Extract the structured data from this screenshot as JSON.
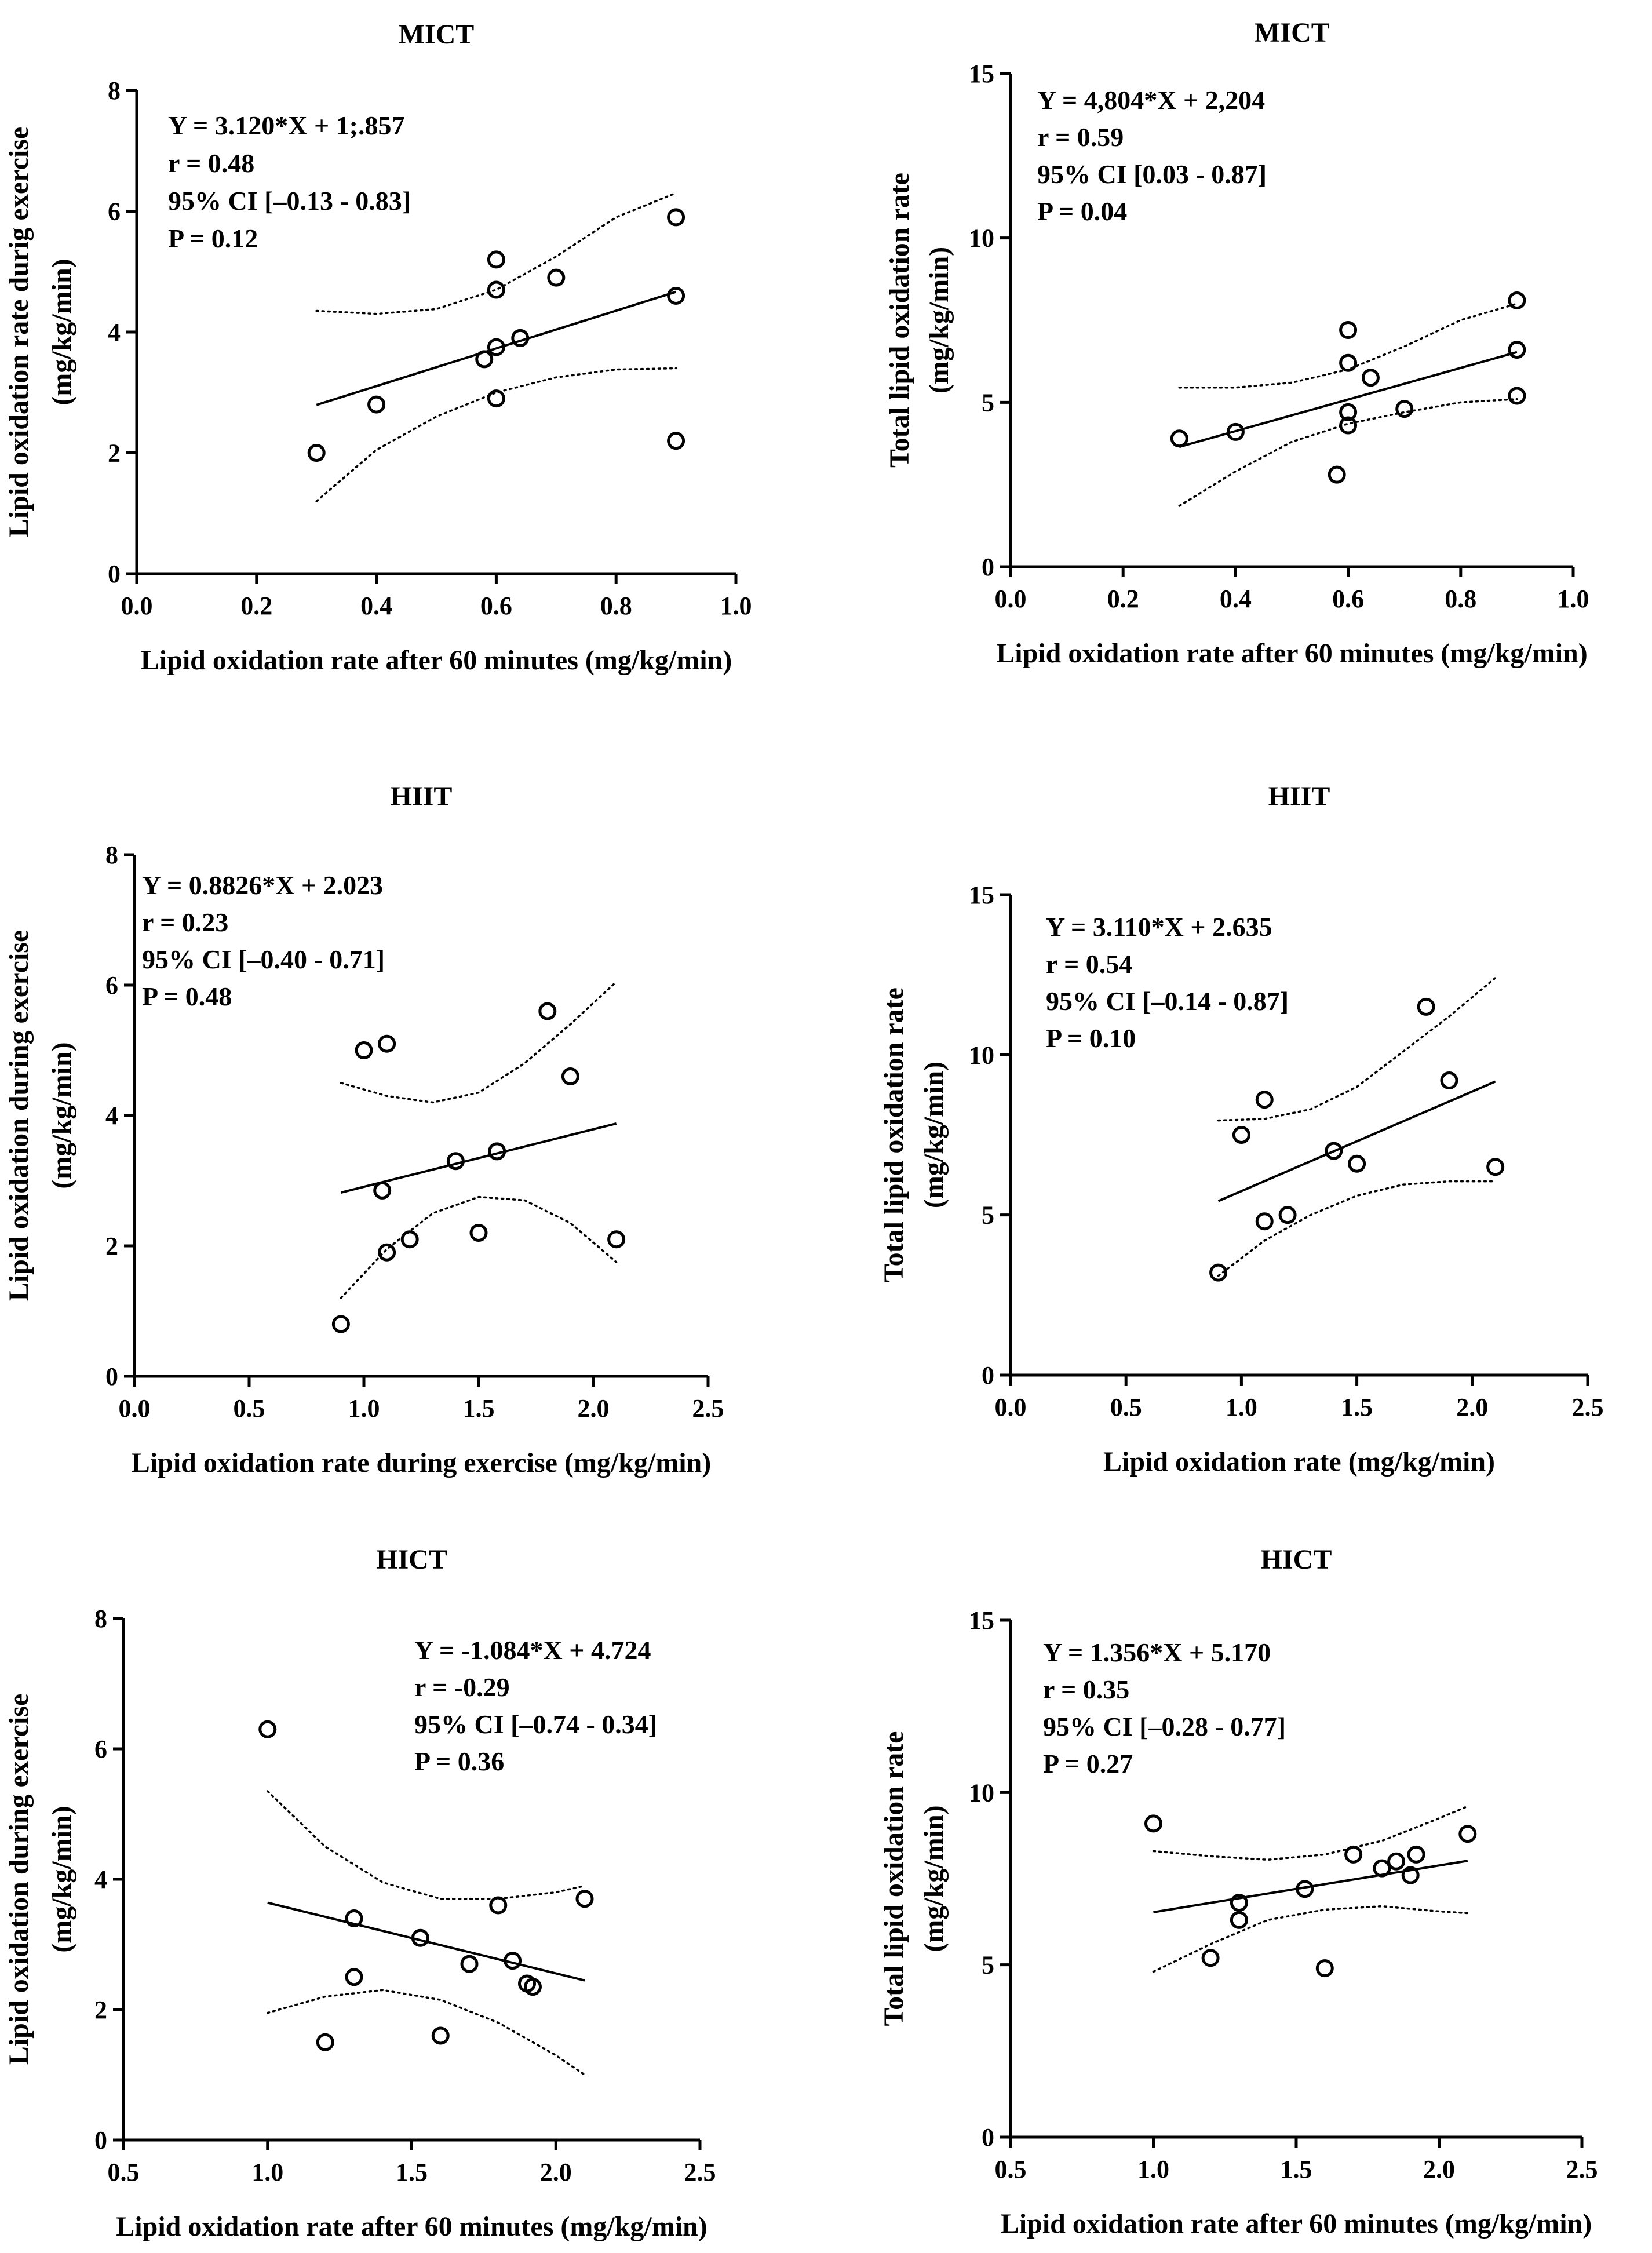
{
  "chart_data": [
    {
      "type": "scatter",
      "title": "MICT",
      "xlabel": "Lipid oxidation rate after 60 minutes (mg/kg/min)",
      "ylabel": [
        "Lipid oxidation rate durig exercise",
        "(mg/kg/min)"
      ],
      "xlim": [
        0.0,
        1.0
      ],
      "ylim": [
        0,
        8
      ],
      "xticks": [
        "0.0",
        "0.2",
        "0.4",
        "0.6",
        "0.8",
        "1.0"
      ],
      "yticks": [
        "0",
        "2",
        "4",
        "6",
        "8"
      ],
      "points": [
        [
          0.3,
          2.0
        ],
        [
          0.4,
          2.8
        ],
        [
          0.58,
          3.55
        ],
        [
          0.6,
          3.75
        ],
        [
          0.6,
          4.7
        ],
        [
          0.6,
          5.2
        ],
        [
          0.6,
          2.9
        ],
        [
          0.64,
          3.9
        ],
        [
          0.7,
          4.9
        ],
        [
          0.9,
          5.9
        ],
        [
          0.9,
          4.6
        ],
        [
          0.9,
          2.2
        ]
      ],
      "fit": {
        "slope": 3.12,
        "intercept": 1.857,
        "x_range": [
          0.3,
          0.9
        ]
      },
      "ci_upper": [
        [
          0.3,
          4.35
        ],
        [
          0.4,
          4.3
        ],
        [
          0.5,
          4.38
        ],
        [
          0.6,
          4.7
        ],
        [
          0.7,
          5.25
        ],
        [
          0.8,
          5.9
        ],
        [
          0.9,
          6.3
        ]
      ],
      "ci_lower": [
        [
          0.3,
          1.2
        ],
        [
          0.4,
          2.05
        ],
        [
          0.5,
          2.6
        ],
        [
          0.6,
          3.0
        ],
        [
          0.7,
          3.25
        ],
        [
          0.8,
          3.38
        ],
        [
          0.9,
          3.4
        ]
      ],
      "stats": [
        "Y = 3.120*X + 1;.857",
        "r = 0.48",
        "95% CI [–0.13 - 0.83]",
        "P = 0.12"
      ]
    },
    {
      "type": "scatter",
      "title": "MICT",
      "xlabel": "Lipid oxidation rate after 60 minutes (mg/kg/min)",
      "ylabel": [
        "Total lipid oxidation rate",
        "(mg/kg/min)"
      ],
      "xlim": [
        0.0,
        1.0
      ],
      "ylim": [
        0,
        15
      ],
      "xticks": [
        "0.0",
        "0.2",
        "0.4",
        "0.6",
        "0.8",
        "1.0"
      ],
      "yticks": [
        "0",
        "5",
        "10",
        "15"
      ],
      "points": [
        [
          0.3,
          3.9
        ],
        [
          0.4,
          4.1
        ],
        [
          0.58,
          2.8
        ],
        [
          0.6,
          7.2
        ],
        [
          0.6,
          6.2
        ],
        [
          0.6,
          4.7
        ],
        [
          0.6,
          4.3
        ],
        [
          0.64,
          5.75
        ],
        [
          0.7,
          4.8
        ],
        [
          0.9,
          8.1
        ],
        [
          0.9,
          6.6
        ],
        [
          0.9,
          5.2
        ]
      ],
      "fit": {
        "slope": 4.804,
        "intercept": 2.204,
        "x_range": [
          0.3,
          0.9
        ]
      },
      "ci_upper": [
        [
          0.3,
          5.45
        ],
        [
          0.4,
          5.45
        ],
        [
          0.5,
          5.6
        ],
        [
          0.6,
          6.0
        ],
        [
          0.7,
          6.7
        ],
        [
          0.8,
          7.5
        ],
        [
          0.9,
          8.0
        ]
      ],
      "ci_lower": [
        [
          0.3,
          1.85
        ],
        [
          0.4,
          2.9
        ],
        [
          0.5,
          3.8
        ],
        [
          0.6,
          4.35
        ],
        [
          0.7,
          4.7
        ],
        [
          0.8,
          5.0
        ],
        [
          0.9,
          5.1
        ]
      ],
      "stats": [
        "Y = 4,804*X + 2,204",
        "r = 0.59",
        "95% CI [0.03 - 0.87]",
        "P = 0.04"
      ]
    },
    {
      "type": "scatter",
      "title": "HIIT",
      "xlabel": "Lipid oxidation rate during exercise (mg/kg/min)",
      "ylabel": [
        "Lipid oxidation during exercise",
        "(mg/kg/min)"
      ],
      "xlim": [
        0.0,
        2.5
      ],
      "ylim": [
        0,
        8
      ],
      "xticks": [
        "0.0",
        "0.5",
        "1.0",
        "1.5",
        "2.0",
        "2.5"
      ],
      "yticks": [
        "0",
        "2",
        "4",
        "6",
        "8"
      ],
      "points": [
        [
          0.9,
          0.8
        ],
        [
          1.0,
          5.0
        ],
        [
          1.08,
          2.85
        ],
        [
          1.1,
          5.1
        ],
        [
          1.1,
          1.9
        ],
        [
          1.2,
          2.1
        ],
        [
          1.4,
          3.3
        ],
        [
          1.5,
          2.2
        ],
        [
          1.58,
          3.45
        ],
        [
          1.8,
          5.6
        ],
        [
          1.9,
          4.6
        ],
        [
          2.1,
          2.1
        ]
      ],
      "fit": {
        "slope": 0.8826,
        "intercept": 2.023,
        "x_range": [
          0.9,
          2.1
        ]
      },
      "ci_upper": [
        [
          0.9,
          4.5
        ],
        [
          1.1,
          4.3
        ],
        [
          1.3,
          4.2
        ],
        [
          1.5,
          4.35
        ],
        [
          1.7,
          4.8
        ],
        [
          1.9,
          5.4
        ],
        [
          2.1,
          6.05
        ]
      ],
      "ci_lower": [
        [
          0.9,
          1.2
        ],
        [
          1.1,
          1.95
        ],
        [
          1.3,
          2.5
        ],
        [
          1.5,
          2.75
        ],
        [
          1.7,
          2.7
        ],
        [
          1.9,
          2.35
        ],
        [
          2.1,
          1.75
        ]
      ],
      "stats": [
        "Y = 0.8826*X + 2.023",
        "r = 0.23",
        "95% CI [–0.40 - 0.71]",
        "P = 0.48"
      ]
    },
    {
      "type": "scatter",
      "title": "HIIT",
      "xlabel": "Lipid oxidation rate (mg/kg/min)",
      "ylabel": [
        "Total lipid oxidation rate",
        "(mg/kg/min)"
      ],
      "xlim": [
        0.0,
        2.5
      ],
      "ylim": [
        0,
        15
      ],
      "xticks": [
        "0.0",
        "0.5",
        "1.0",
        "1.5",
        "2.0",
        "2.5"
      ],
      "yticks": [
        "0",
        "5",
        "10",
        "15"
      ],
      "points": [
        [
          0.9,
          3.2
        ],
        [
          1.0,
          7.5
        ],
        [
          1.1,
          8.6
        ],
        [
          1.1,
          4.8
        ],
        [
          1.2,
          5.0
        ],
        [
          1.4,
          7.0
        ],
        [
          1.5,
          6.6
        ],
        [
          1.8,
          11.5
        ],
        [
          1.9,
          9.2
        ],
        [
          2.1,
          6.5
        ]
      ],
      "fit": {
        "slope": 3.11,
        "intercept": 2.635,
        "x_range": [
          0.9,
          2.1
        ]
      },
      "ci_upper": [
        [
          0.9,
          7.95
        ],
        [
          1.1,
          8.0
        ],
        [
          1.3,
          8.3
        ],
        [
          1.5,
          9.0
        ],
        [
          1.7,
          10.1
        ],
        [
          1.9,
          11.2
        ],
        [
          2.1,
          12.4
        ]
      ],
      "ci_lower": [
        [
          0.9,
          3.1
        ],
        [
          1.1,
          4.2
        ],
        [
          1.3,
          5.0
        ],
        [
          1.5,
          5.6
        ],
        [
          1.7,
          5.95
        ],
        [
          1.9,
          6.05
        ],
        [
          2.1,
          6.05
        ]
      ],
      "stats": [
        "Y = 3.110*X + 2.635",
        "r = 0.54",
        "95% CI [–0.14 - 0.87]",
        "P = 0.10"
      ]
    },
    {
      "type": "scatter",
      "title": "HICT",
      "xlabel": "Lipid oxidation rate after 60 minutes (mg/kg/min)",
      "ylabel": [
        "Lipid oxidation during exercise",
        "(mg/kg/min)"
      ],
      "xlim": [
        0.5,
        2.5
      ],
      "ylim": [
        0,
        8
      ],
      "xticks": [
        "0.5",
        "1.0",
        "1.5",
        "2.0",
        "2.5"
      ],
      "yticks": [
        "0",
        "2",
        "4",
        "6",
        "8"
      ],
      "points": [
        [
          1.0,
          6.3
        ],
        [
          1.2,
          1.5
        ],
        [
          1.3,
          3.4
        ],
        [
          1.3,
          2.5
        ],
        [
          1.53,
          3.1
        ],
        [
          1.6,
          1.6
        ],
        [
          1.7,
          2.7
        ],
        [
          1.8,
          3.6
        ],
        [
          1.85,
          2.75
        ],
        [
          1.9,
          2.4
        ],
        [
          1.92,
          2.35
        ],
        [
          2.1,
          3.7
        ]
      ],
      "fit": {
        "slope": -1.084,
        "intercept": 4.724,
        "x_range": [
          1.0,
          2.1
        ]
      },
      "ci_upper": [
        [
          1.0,
          5.35
        ],
        [
          1.2,
          4.5
        ],
        [
          1.4,
          3.95
        ],
        [
          1.6,
          3.7
        ],
        [
          1.8,
          3.7
        ],
        [
          2.0,
          3.8
        ],
        [
          2.1,
          3.9
        ]
      ],
      "ci_lower": [
        [
          1.0,
          1.95
        ],
        [
          1.2,
          2.2
        ],
        [
          1.4,
          2.3
        ],
        [
          1.6,
          2.15
        ],
        [
          1.8,
          1.8
        ],
        [
          2.0,
          1.3
        ],
        [
          2.1,
          1.0
        ]
      ],
      "stats": [
        "Y = -1.084*X + 4.724",
        "r = -0.29",
        "95% CI [–0.74 - 0.34]",
        "P = 0.36"
      ]
    },
    {
      "type": "scatter",
      "title": "HICT",
      "xlabel": "Lipid oxidation rate after 60 minutes (mg/kg/min)",
      "ylabel": [
        "Total lipid oxidation rate",
        "(mg/kg/min)"
      ],
      "xlim": [
        0.5,
        2.5
      ],
      "ylim": [
        0,
        15
      ],
      "xticks": [
        "0.5",
        "1.0",
        "1.5",
        "2.0",
        "2.5"
      ],
      "yticks": [
        "0",
        "5",
        "10",
        "15"
      ],
      "points": [
        [
          1.0,
          9.1
        ],
        [
          1.2,
          5.2
        ],
        [
          1.3,
          6.8
        ],
        [
          1.3,
          6.3
        ],
        [
          1.53,
          7.2
        ],
        [
          1.6,
          4.9
        ],
        [
          1.7,
          8.2
        ],
        [
          1.8,
          7.8
        ],
        [
          1.85,
          8.0
        ],
        [
          1.9,
          7.6
        ],
        [
          1.92,
          8.2
        ],
        [
          2.1,
          8.8
        ]
      ],
      "fit": {
        "slope": 1.356,
        "intercept": 5.17,
        "x_range": [
          1.0,
          2.1
        ]
      },
      "ci_upper": [
        [
          1.0,
          8.3
        ],
        [
          1.2,
          8.15
        ],
        [
          1.4,
          8.05
        ],
        [
          1.6,
          8.2
        ],
        [
          1.8,
          8.6
        ],
        [
          2.0,
          9.25
        ],
        [
          2.1,
          9.6
        ]
      ],
      "ci_lower": [
        [
          1.0,
          4.8
        ],
        [
          1.2,
          5.6
        ],
        [
          1.4,
          6.3
        ],
        [
          1.6,
          6.6
        ],
        [
          1.8,
          6.7
        ],
        [
          2.0,
          6.55
        ],
        [
          2.1,
          6.5
        ]
      ],
      "stats": [
        "Y = 1.356*X + 5.170",
        "r = 0.35",
        "95% CI [–0.28 - 0.77]",
        "P = 0.27"
      ]
    }
  ]
}
